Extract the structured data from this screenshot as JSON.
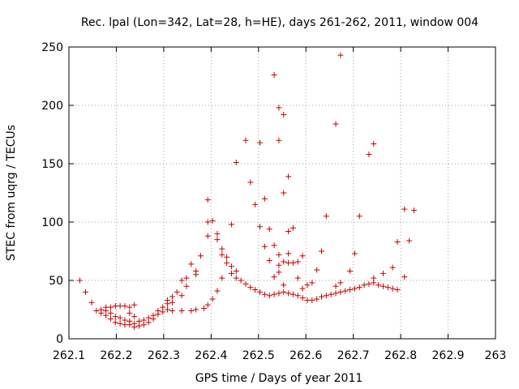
{
  "chart_data": {
    "type": "scatter",
    "title": "Rec. lpal (Lon=342, Lat=28, h=HE), days 261-262, 2011, window 004",
    "xlabel": "GPS time / Days of year 2011",
    "ylabel": "STEC from uqrg / TECUs",
    "xlim": [
      262.1,
      263
    ],
    "ylim": [
      0,
      250
    ],
    "xticks": [
      "262.1",
      "262.2",
      "262.3",
      "262.4",
      "262.5",
      "262.6",
      "262.7",
      "262.8",
      "262.9",
      "263"
    ],
    "yticks": [
      "0",
      "50",
      "100",
      "150",
      "200",
      "250"
    ],
    "grid": true,
    "marker": "plus",
    "color": "#cc0000",
    "points": [
      [
        262.123,
        50
      ],
      [
        262.135,
        40
      ],
      [
        262.148,
        31
      ],
      [
        262.158,
        24
      ],
      [
        262.168,
        22
      ],
      [
        262.168,
        25
      ],
      [
        262.178,
        20
      ],
      [
        262.178,
        24
      ],
      [
        262.178,
        27
      ],
      [
        262.188,
        17
      ],
      [
        262.188,
        22
      ],
      [
        262.188,
        27
      ],
      [
        262.198,
        14
      ],
      [
        262.198,
        19
      ],
      [
        262.198,
        28
      ],
      [
        262.208,
        13
      ],
      [
        262.208,
        18
      ],
      [
        262.208,
        28
      ],
      [
        262.218,
        12
      ],
      [
        262.218,
        16
      ],
      [
        262.218,
        28
      ],
      [
        262.228,
        12
      ],
      [
        262.228,
        15
      ],
      [
        262.228,
        22
      ],
      [
        262.228,
        27
      ],
      [
        262.238,
        10
      ],
      [
        262.238,
        13
      ],
      [
        262.238,
        19
      ],
      [
        262.238,
        29
      ],
      [
        262.248,
        11
      ],
      [
        262.248,
        15
      ],
      [
        262.258,
        12
      ],
      [
        262.258,
        16
      ],
      [
        262.268,
        14
      ],
      [
        262.268,
        18
      ],
      [
        262.278,
        17
      ],
      [
        262.278,
        20
      ],
      [
        262.288,
        21
      ],
      [
        262.288,
        24
      ],
      [
        262.298,
        23
      ],
      [
        262.298,
        27
      ],
      [
        262.308,
        25
      ],
      [
        262.308,
        30
      ],
      [
        262.308,
        33
      ],
      [
        262.318,
        24
      ],
      [
        262.318,
        31
      ],
      [
        262.318,
        36
      ],
      [
        262.328,
        40
      ],
      [
        262.338,
        24
      ],
      [
        262.338,
        37
      ],
      [
        262.338,
        50
      ],
      [
        262.348,
        45
      ],
      [
        262.348,
        52
      ],
      [
        262.358,
        24
      ],
      [
        262.358,
        64
      ],
      [
        262.368,
        25
      ],
      [
        262.368,
        55
      ],
      [
        262.368,
        58
      ],
      [
        262.378,
        71
      ],
      [
        262.385,
        26
      ],
      [
        262.393,
        29
      ],
      [
        262.393,
        88
      ],
      [
        262.393,
        100
      ],
      [
        262.393,
        119
      ],
      [
        262.403,
        34
      ],
      [
        262.403,
        101
      ],
      [
        262.413,
        41
      ],
      [
        262.413,
        85
      ],
      [
        262.413,
        90
      ],
      [
        262.423,
        52
      ],
      [
        262.423,
        72
      ],
      [
        262.423,
        77
      ],
      [
        262.433,
        65
      ],
      [
        262.433,
        70
      ],
      [
        262.443,
        56
      ],
      [
        262.443,
        62
      ],
      [
        262.443,
        98
      ],
      [
        262.453,
        52
      ],
      [
        262.453,
        58
      ],
      [
        262.453,
        151
      ],
      [
        262.463,
        50
      ],
      [
        262.473,
        47
      ],
      [
        262.473,
        170
      ],
      [
        262.483,
        44
      ],
      [
        262.483,
        134
      ],
      [
        262.493,
        42
      ],
      [
        262.493,
        115
      ],
      [
        262.503,
        40
      ],
      [
        262.503,
        168
      ],
      [
        262.503,
        96
      ],
      [
        262.513,
        38
      ],
      [
        262.513,
        79
      ],
      [
        262.513,
        120
      ],
      [
        262.523,
        37
      ],
      [
        262.523,
        67
      ],
      [
        262.523,
        94
      ],
      [
        262.533,
        38
      ],
      [
        262.533,
        53
      ],
      [
        262.533,
        80
      ],
      [
        262.533,
        226
      ],
      [
        262.543,
        39
      ],
      [
        262.543,
        57
      ],
      [
        262.543,
        63
      ],
      [
        262.543,
        72
      ],
      [
        262.543,
        170
      ],
      [
        262.543,
        198
      ],
      [
        262.553,
        40
      ],
      [
        262.553,
        46
      ],
      [
        262.553,
        66
      ],
      [
        262.553,
        125
      ],
      [
        262.553,
        192
      ],
      [
        262.563,
        39
      ],
      [
        262.563,
        65
      ],
      [
        262.563,
        73
      ],
      [
        262.563,
        92
      ],
      [
        262.563,
        139
      ],
      [
        262.573,
        38
      ],
      [
        262.573,
        65
      ],
      [
        262.573,
        95
      ],
      [
        262.583,
        37
      ],
      [
        262.583,
        52
      ],
      [
        262.583,
        66
      ],
      [
        262.593,
        35
      ],
      [
        262.593,
        43
      ],
      [
        262.593,
        71
      ],
      [
        262.603,
        33
      ],
      [
        262.603,
        46
      ],
      [
        262.613,
        33
      ],
      [
        262.613,
        48
      ],
      [
        262.623,
        34
      ],
      [
        262.623,
        59
      ],
      [
        262.633,
        36
      ],
      [
        262.633,
        75
      ],
      [
        262.643,
        37
      ],
      [
        262.643,
        105
      ],
      [
        262.653,
        38
      ],
      [
        262.663,
        39
      ],
      [
        262.663,
        45
      ],
      [
        262.663,
        184
      ],
      [
        262.673,
        40
      ],
      [
        262.673,
        48
      ],
      [
        262.673,
        243
      ],
      [
        262.683,
        41
      ],
      [
        262.693,
        42
      ],
      [
        262.693,
        58
      ],
      [
        262.703,
        43
      ],
      [
        262.703,
        73
      ],
      [
        262.713,
        44
      ],
      [
        262.713,
        105
      ],
      [
        262.723,
        46
      ],
      [
        262.733,
        47
      ],
      [
        262.733,
        158
      ],
      [
        262.743,
        48
      ],
      [
        262.743,
        52
      ],
      [
        262.743,
        167
      ],
      [
        262.753,
        46
      ],
      [
        262.763,
        45
      ],
      [
        262.763,
        56
      ],
      [
        262.773,
        44
      ],
      [
        262.783,
        43
      ],
      [
        262.783,
        61
      ],
      [
        262.793,
        42
      ],
      [
        262.793,
        83
      ],
      [
        262.808,
        53
      ],
      [
        262.808,
        111
      ],
      [
        262.818,
        84
      ],
      [
        262.828,
        110
      ]
    ]
  }
}
